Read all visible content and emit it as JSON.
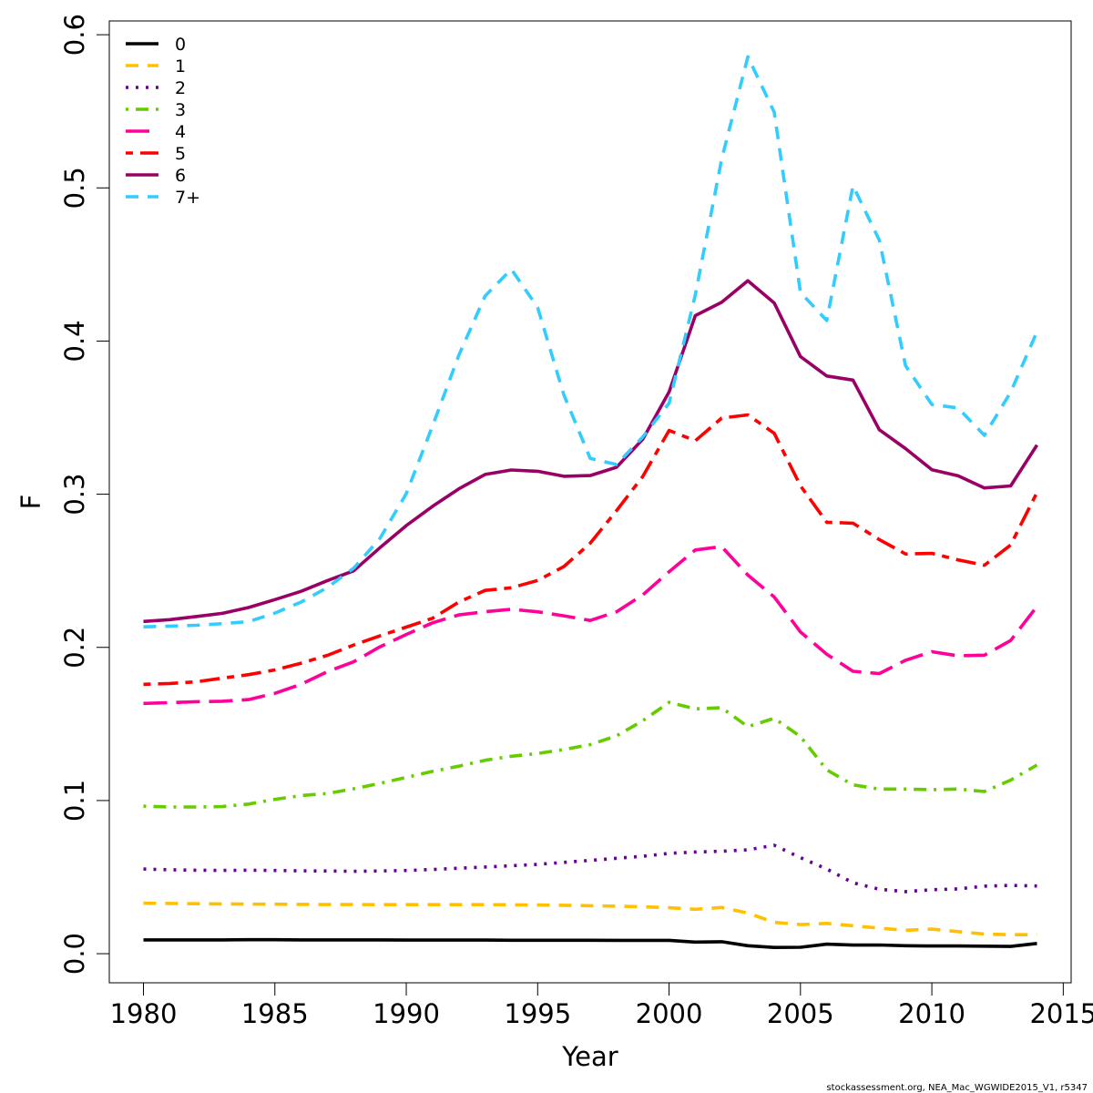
{
  "chart_data": {
    "type": "line",
    "xlabel": "Year",
    "ylabel": "F",
    "xlim": [
      1978.7,
      2015.3
    ],
    "ylim": [
      -0.019,
      0.609
    ],
    "xticks": [
      1980,
      1985,
      1990,
      1995,
      2000,
      2005,
      2010,
      2015
    ],
    "yticks": [
      0.0,
      0.1,
      0.2,
      0.3,
      0.4,
      0.5,
      0.6
    ],
    "xtick_labels": [
      "1980",
      "1985",
      "1990",
      "1995",
      "2000",
      "2005",
      "2010",
      "2015"
    ],
    "ytick_labels": [
      "0.0",
      "0.1",
      "0.2",
      "0.3",
      "0.4",
      "0.5",
      "0.6"
    ],
    "grid": false,
    "legend_position": "top-left",
    "x": [
      1980,
      1981,
      1982,
      1983,
      1984,
      1985,
      1986,
      1987,
      1988,
      1989,
      1990,
      1991,
      1992,
      1993,
      1994,
      1995,
      1996,
      1997,
      1998,
      1999,
      2000,
      2001,
      2002,
      2003,
      2004,
      2005,
      2006,
      2007,
      2008,
      2009,
      2010,
      2011,
      2012,
      2013,
      2014
    ],
    "series": [
      {
        "name": "0",
        "color": "#000000",
        "dash": "solid",
        "values": [
          0.009,
          0.009,
          0.009,
          0.009,
          0.0091,
          0.0091,
          0.009,
          0.009,
          0.009,
          0.009,
          0.0089,
          0.0089,
          0.0089,
          0.0089,
          0.0088,
          0.0088,
          0.0088,
          0.0088,
          0.0087,
          0.0087,
          0.0087,
          0.0076,
          0.0078,
          0.0052,
          0.0041,
          0.0042,
          0.0062,
          0.0056,
          0.0057,
          0.0052,
          0.005,
          0.005,
          0.0049,
          0.0047,
          0.0067
        ]
      },
      {
        "name": "1",
        "color": "#FFC000",
        "dash": "dashed",
        "values": [
          0.033,
          0.0328,
          0.0326,
          0.0325,
          0.0324,
          0.0323,
          0.0322,
          0.0321,
          0.0321,
          0.032,
          0.032,
          0.032,
          0.032,
          0.032,
          0.0319,
          0.0318,
          0.0316,
          0.0313,
          0.031,
          0.0306,
          0.03,
          0.029,
          0.0302,
          0.0265,
          0.0205,
          0.019,
          0.0198,
          0.0182,
          0.0167,
          0.0153,
          0.016,
          0.0144,
          0.0128,
          0.0124,
          0.0124
        ]
      },
      {
        "name": "2",
        "color": "#660099",
        "dash": "dotted",
        "values": [
          0.0553,
          0.0548,
          0.0545,
          0.0544,
          0.0545,
          0.0543,
          0.0541,
          0.054,
          0.0538,
          0.054,
          0.0543,
          0.055,
          0.0558,
          0.0566,
          0.0574,
          0.0583,
          0.0596,
          0.0609,
          0.0623,
          0.0636,
          0.0655,
          0.0664,
          0.0669,
          0.0678,
          0.0708,
          0.0627,
          0.0553,
          0.0463,
          0.0421,
          0.0405,
          0.0418,
          0.0423,
          0.0441,
          0.0446,
          0.0442
        ]
      },
      {
        "name": "3",
        "color": "#66CC00",
        "dash": "dotdash",
        "values": [
          0.0963,
          0.0958,
          0.0958,
          0.0961,
          0.0977,
          0.1008,
          0.1032,
          0.1046,
          0.1077,
          0.1112,
          0.1151,
          0.119,
          0.1224,
          0.1263,
          0.1289,
          0.1307,
          0.1333,
          0.1365,
          0.1422,
          0.1521,
          0.1641,
          0.1598,
          0.1606,
          0.1482,
          0.1537,
          0.1418,
          0.12,
          0.1102,
          0.1075,
          0.1075,
          0.1071,
          0.1075,
          0.1059,
          0.1133,
          0.1232
        ]
      },
      {
        "name": "4",
        "color": "#FF0099",
        "dash": "longdash",
        "values": [
          0.1634,
          0.1639,
          0.1645,
          0.1648,
          0.1659,
          0.17,
          0.1759,
          0.1842,
          0.1906,
          0.2004,
          0.2084,
          0.216,
          0.2212,
          0.2233,
          0.2249,
          0.2232,
          0.2206,
          0.2176,
          0.2232,
          0.2343,
          0.2494,
          0.2636,
          0.2658,
          0.2472,
          0.2329,
          0.2101,
          0.1955,
          0.1844,
          0.1829,
          0.1916,
          0.1972,
          0.1945,
          0.1949,
          0.2045,
          0.2267
        ]
      },
      {
        "name": "5",
        "color": "#FF0000",
        "dash": "twodash",
        "values": [
          0.1759,
          0.1764,
          0.1775,
          0.1799,
          0.1822,
          0.1853,
          0.1897,
          0.1948,
          0.2015,
          0.2075,
          0.2132,
          0.219,
          0.2296,
          0.2372,
          0.2389,
          0.2437,
          0.2528,
          0.268,
          0.2893,
          0.3116,
          0.3416,
          0.3349,
          0.3497,
          0.3518,
          0.3398,
          0.3055,
          0.2817,
          0.2811,
          0.2704,
          0.261,
          0.2614,
          0.2571,
          0.2536,
          0.2669,
          0.3011
        ]
      },
      {
        "name": "6",
        "color": "#990066",
        "dash": "solid",
        "values": [
          0.2169,
          0.2181,
          0.2201,
          0.2222,
          0.226,
          0.2312,
          0.2366,
          0.2436,
          0.25,
          0.2651,
          0.2795,
          0.2921,
          0.3035,
          0.3129,
          0.3158,
          0.315,
          0.3117,
          0.3122,
          0.3176,
          0.3359,
          0.3668,
          0.4166,
          0.4253,
          0.4394,
          0.4249,
          0.3899,
          0.3772,
          0.3745,
          0.3421,
          0.3298,
          0.316,
          0.312,
          0.3041,
          0.3054,
          0.3321
        ]
      },
      {
        "name": "7+",
        "color": "#33CCFF",
        "dash": "dashed",
        "values": [
          0.2134,
          0.2139,
          0.2144,
          0.2155,
          0.2168,
          0.2224,
          0.2296,
          0.2391,
          0.2517,
          0.2712,
          0.3003,
          0.3446,
          0.3907,
          0.4294,
          0.4469,
          0.4219,
          0.3648,
          0.3234,
          0.3194,
          0.3374,
          0.3594,
          0.4302,
          0.5187,
          0.5856,
          0.5495,
          0.4318,
          0.4134,
          0.5014,
          0.4659,
          0.3839,
          0.3586,
          0.3563,
          0.3384,
          0.3666,
          0.4061
        ]
      }
    ]
  },
  "credit": "stockassessment.org, NEA_Mac_WGWIDE2015_V1, r5347"
}
